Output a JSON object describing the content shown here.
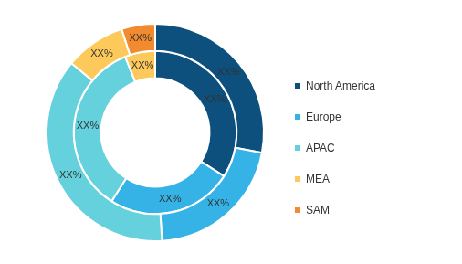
{
  "chart_data": {
    "type": "doughnut",
    "categories": [
      "North America",
      "Europe",
      "APAC",
      "MEA",
      "SAM"
    ],
    "colors": [
      "#0d4f7d",
      "#35b3e6",
      "#64d1dc",
      "#fdc95a",
      "#f28a30"
    ],
    "series": [
      {
        "values": [
          28,
          21,
          37,
          9,
          5
        ],
        "value_labels": [
          "XX%",
          "XX%",
          "XX%",
          "XX%",
          "XX%"
        ]
      },
      {
        "values": [
          34,
          25,
          35,
          6,
          null
        ],
        "value_labels": [
          "XX%",
          "XX%",
          "XX%",
          "XX%",
          null
        ]
      }
    ],
    "data_labels": true,
    "legend": "right"
  }
}
